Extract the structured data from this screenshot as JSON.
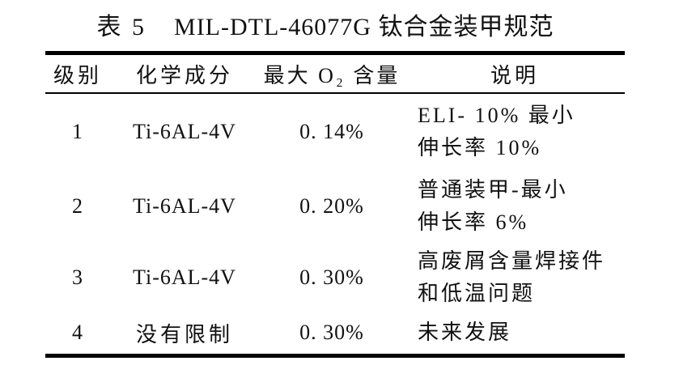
{
  "caption": {
    "label": "表 5",
    "title": "MIL-DTL-46077G 钛合金装甲规范"
  },
  "table": {
    "headers": [
      "级别",
      "化学成分",
      "最大 O₂ 含量",
      "说明"
    ],
    "rows": [
      {
        "grade": "1",
        "composition": "Ti-6AL-4V",
        "max_o2": "0. 14%",
        "description": [
          "ELI- 10% 最小",
          "伸长率 10%"
        ]
      },
      {
        "grade": "2",
        "composition": "Ti-6AL-4V",
        "max_o2": "0. 20%",
        "description": [
          "普通装甲-最小",
          "伸长率 6%"
        ]
      },
      {
        "grade": "3",
        "composition": "Ti-6AL-4V",
        "max_o2": "0. 30%",
        "description": [
          "高废屑含量焊接件",
          "和低温问题"
        ]
      },
      {
        "grade": "4",
        "composition": "没有限制",
        "max_o2": "0. 30%",
        "description": [
          "未来发展"
        ]
      }
    ]
  },
  "colors": {
    "background": "#ffffff",
    "text": "#111111",
    "border": "#000000"
  }
}
